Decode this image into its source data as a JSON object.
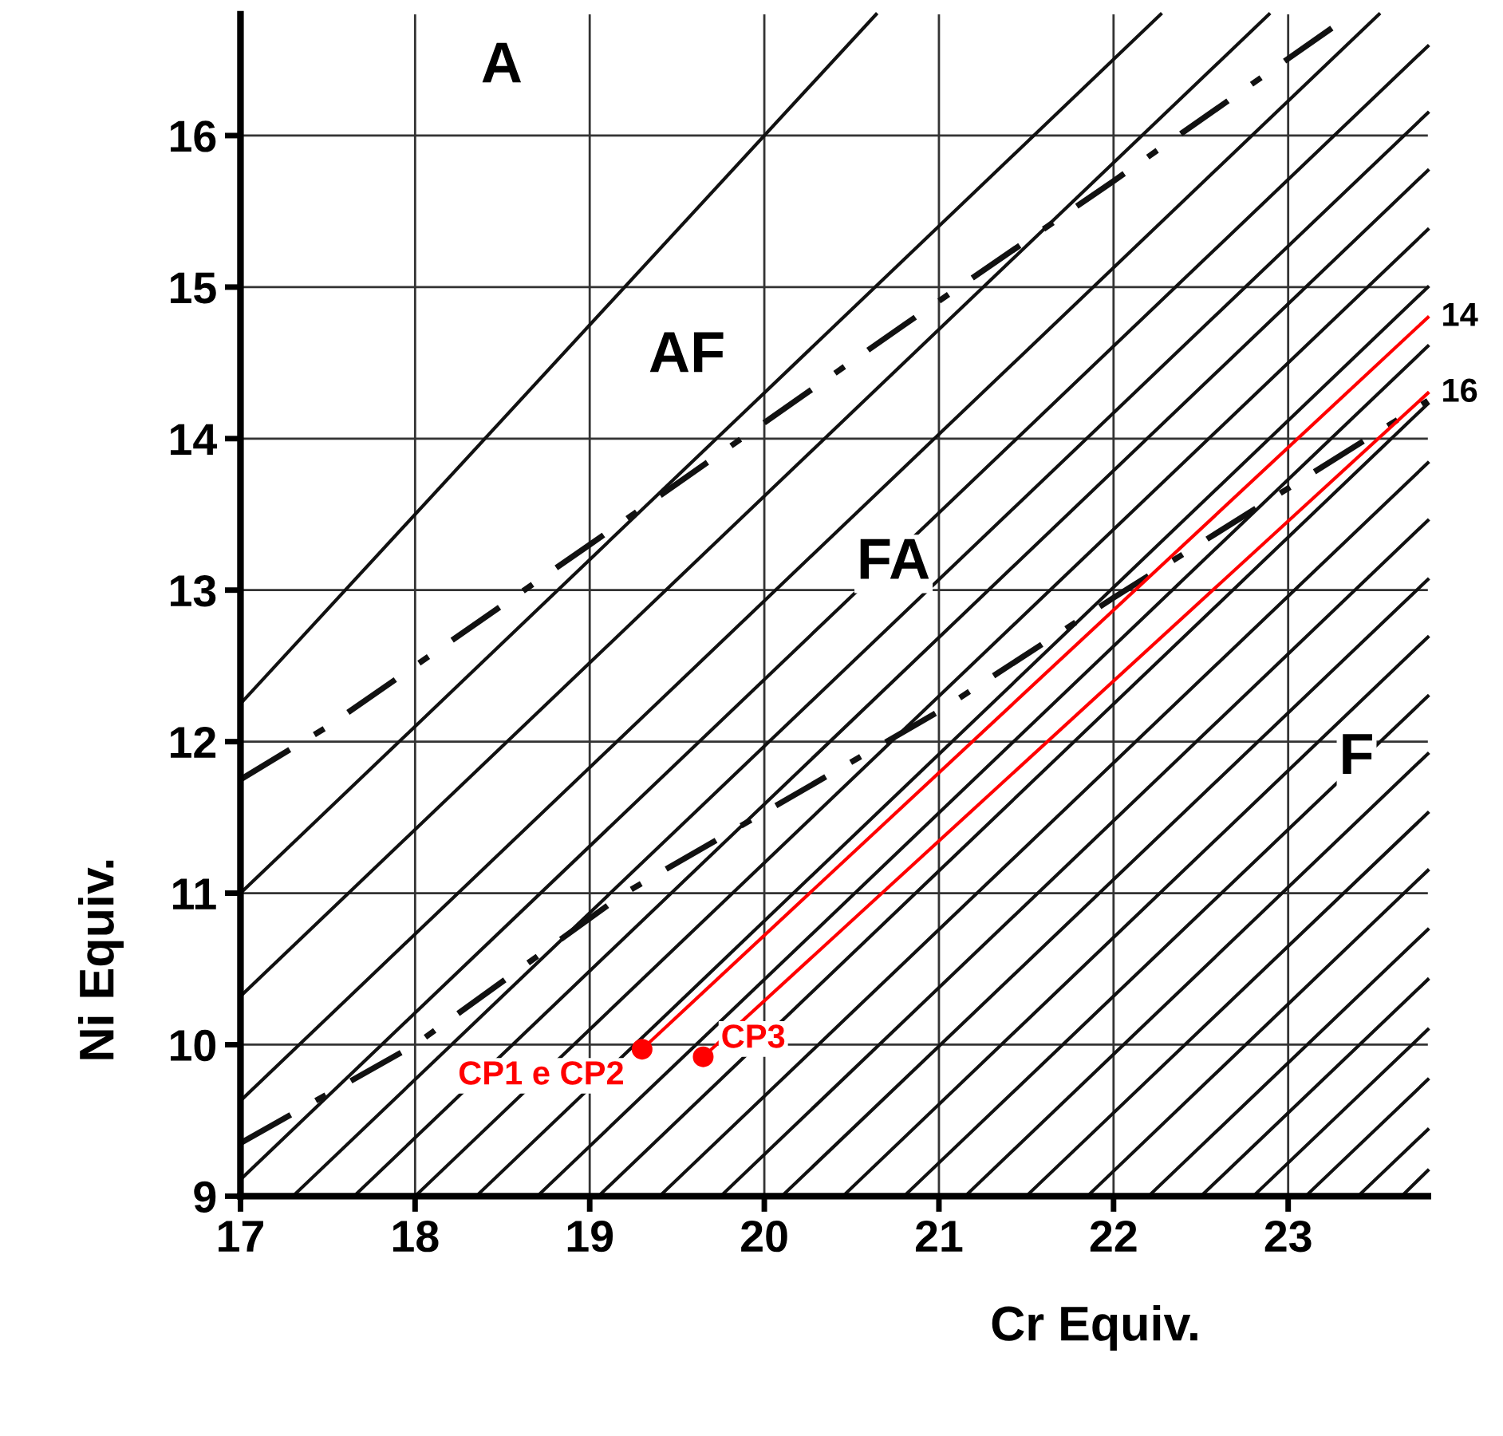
{
  "chart_data": {
    "type": "line",
    "xlabel": "Cr Equiv.",
    "ylabel": "Ni Equiv.",
    "xlim": [
      17,
      23.8
    ],
    "ylim": [
      9,
      16.8
    ],
    "xticks": [
      17,
      18,
      19,
      20,
      21,
      22,
      23
    ],
    "yticks": [
      9,
      10,
      11,
      12,
      13,
      14,
      15,
      16
    ],
    "grid": true,
    "legend": false,
    "annotations": [
      "A",
      "AF",
      "FA",
      "F"
    ],
    "series": [
      {
        "color": "#111111",
        "x": [
          17,
          20.64
        ],
        "values": [
          12.25,
          16.8
        ]
      },
      {
        "color": "#111111",
        "line_style": "dashed",
        "x": [
          17,
          17.5,
          19,
          20.8,
          22,
          23.3
        ],
        "values": [
          11.75,
          12.1,
          13.3,
          14.75,
          15.7,
          16.75
        ]
      },
      {
        "color": "#111111",
        "line_style": "dashed",
        "x": [
          17,
          18,
          19.2,
          21,
          22,
          23.8
        ],
        "values": [
          9.35,
          10.0,
          11.0,
          12.2,
          12.95,
          14.25
        ]
      },
      {
        "color": "#111111",
        "x": [
          17,
          22.27
        ],
        "values": [
          11.0,
          16.8
        ]
      },
      {
        "color": "#111111",
        "x": [
          17,
          22.89
        ],
        "values": [
          10.32,
          16.8
        ]
      },
      {
        "color": "#111111",
        "x": [
          17,
          23.52
        ],
        "values": [
          9.63,
          16.8
        ]
      },
      {
        "color": "#111111",
        "x": [
          17,
          23.8
        ],
        "values": [
          9.11,
          16.59
        ]
      },
      {
        "color": "#111111",
        "x": [
          17.3,
          23.8
        ],
        "values": [
          9,
          16.15
        ]
      },
      {
        "color": "#111111",
        "x": [
          17.65,
          23.8
        ],
        "values": [
          9,
          15.77
        ]
      },
      {
        "color": "#111111",
        "x": [
          18.0,
          23.8
        ],
        "values": [
          9,
          15.38
        ]
      },
      {
        "color": "#111111",
        "x": [
          18.35,
          23.8
        ],
        "values": [
          9,
          15.0
        ]
      },
      {
        "color": "#111111",
        "x": [
          18.7,
          23.8
        ],
        "values": [
          9,
          14.61
        ]
      },
      {
        "color": "#111111",
        "x": [
          19.05,
          23.8
        ],
        "values": [
          9,
          14.23
        ]
      },
      {
        "color": "#111111",
        "x": [
          19.4,
          23.8
        ],
        "values": [
          9,
          13.84
        ]
      },
      {
        "color": "#111111",
        "x": [
          19.75,
          23.8
        ],
        "values": [
          9,
          13.46
        ]
      },
      {
        "color": "#111111",
        "x": [
          20.1,
          23.8
        ],
        "values": [
          9,
          13.07
        ]
      },
      {
        "color": "#111111",
        "x": [
          20.45,
          23.8
        ],
        "values": [
          9,
          12.69
        ]
      },
      {
        "color": "#111111",
        "x": [
          20.8,
          23.8
        ],
        "values": [
          9,
          12.3
        ]
      },
      {
        "color": "#111111",
        "x": [
          21.15,
          23.8
        ],
        "values": [
          9,
          11.92
        ]
      },
      {
        "color": "#111111",
        "x": [
          21.5,
          23.8
        ],
        "values": [
          9,
          11.53
        ]
      },
      {
        "color": "#111111",
        "x": [
          21.85,
          23.8
        ],
        "values": [
          9,
          11.15
        ]
      },
      {
        "color": "#111111",
        "x": [
          22.2,
          23.8
        ],
        "values": [
          9,
          10.76
        ]
      },
      {
        "color": "#111111",
        "x": [
          22.5,
          23.8
        ],
        "values": [
          9,
          10.43
        ]
      },
      {
        "color": "#111111",
        "x": [
          22.8,
          23.8
        ],
        "values": [
          9,
          10.1
        ]
      },
      {
        "color": "#111111",
        "x": [
          23.1,
          23.8
        ],
        "values": [
          9,
          9.77
        ]
      },
      {
        "color": "#111111",
        "x": [
          23.4,
          23.8
        ],
        "values": [
          9,
          9.44
        ]
      },
      {
        "color": "#111111",
        "x": [
          23.65,
          23.8
        ],
        "values": [
          9,
          9.17
        ]
      },
      {
        "name": "14",
        "color": "#ff0000",
        "x": [
          19.3,
          23.8
        ],
        "values": [
          9.97,
          14.8
        ]
      },
      {
        "name": "16",
        "color": "#ff0000",
        "x": [
          19.65,
          23.8
        ],
        "values": [
          9.92,
          14.3
        ]
      },
      {
        "name": "CP1 e CP2",
        "type": "scatter",
        "marker": "circle",
        "color": "#ff0000",
        "x": [
          19.3
        ],
        "values": [
          9.97
        ]
      },
      {
        "name": "CP3",
        "type": "scatter",
        "marker": "circle",
        "color": "#ff0000",
        "x": [
          19.65
        ],
        "values": [
          9.92
        ]
      }
    ]
  }
}
